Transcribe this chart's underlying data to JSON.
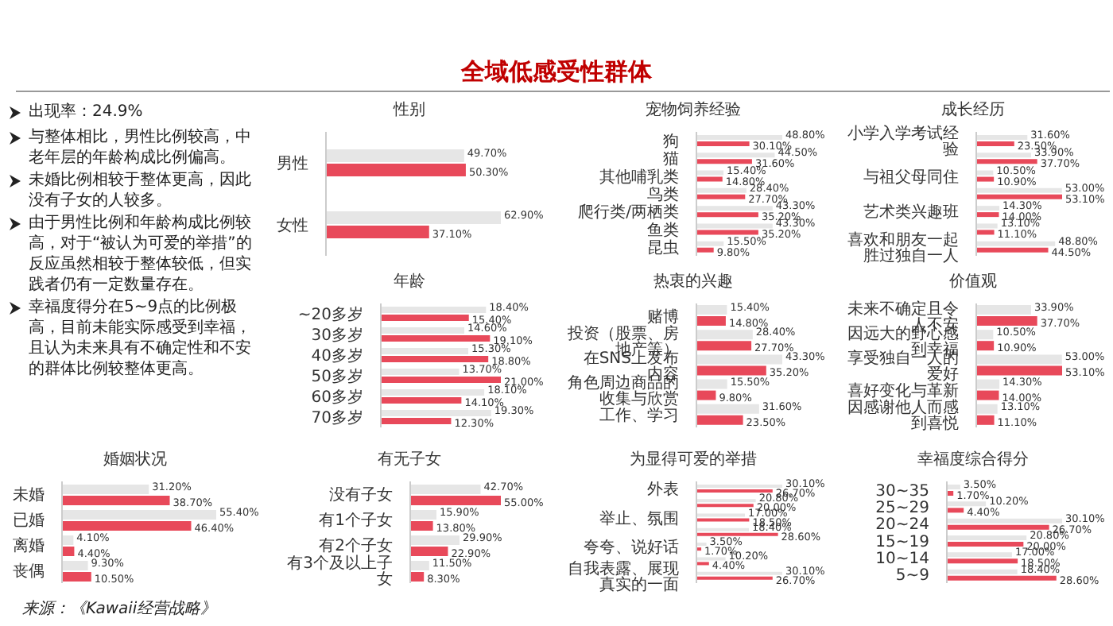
{
  "chart_data": [
    {
      "type": "other",
      "title": "全域低感受性群体",
      "annotations": [
        "出现率：24.9%",
        "与整体相比，男性比例较高，中老年层的年龄构成比例偏高。",
        "未婚比例相较于整体更高，因此没有子女的人较多。",
        "由于男性比例和年龄构成比例较高，对于“被认为可爱的举措”的反应虽然相较于整体较低，但实践者仍有一定数量存在。",
        "幸福度得分在5~9点的比例极高，目前未能实际感受到幸福，且认为未来具有不确定性和不安的群体比例较整体更高。",
        "来源：《Kawaii经营战略》"
      ]
    },
    {
      "type": "bar",
      "orientation": "horizontal",
      "title": "性别",
      "tick_labels": "y",
      "categories": [
        "男性",
        "女性"
      ],
      "series": [
        {
          "color": "#e6e6e6",
          "values": [
            49.7,
            62.9
          ],
          "value_labels": [
            "49.70%",
            "62.90%"
          ]
        },
        {
          "color": "#e8495a",
          "values": [
            50.3,
            37.1
          ],
          "value_labels": [
            "50.30%",
            "37.10%"
          ]
        }
      ]
    },
    {
      "type": "bar",
      "orientation": "horizontal",
      "title": "宠物饲养经验",
      "tick_labels": "y",
      "categories": [
        "狗",
        "猫",
        "其他哺乳类",
        "鸟类",
        "爬行类/两栖类",
        "鱼类",
        "昆虫"
      ],
      "series": [
        {
          "color": "#e6e6e6",
          "values": [
            48.8,
            44.5,
            15.4,
            28.4,
            43.3,
            43.3,
            15.5
          ],
          "value_labels": [
            "48.80%",
            "44.50%",
            "15.40%",
            "28.40%",
            "43.30%",
            "43.30%",
            "15.50%"
          ]
        },
        {
          "color": "#e8495a",
          "values": [
            30.1,
            31.6,
            14.8,
            27.7,
            35.2,
            35.2,
            9.8
          ],
          "value_labels": [
            "30.10%",
            "31.60%",
            "14.80%",
            "27.70%",
            "35.20%",
            "35.20%",
            "9.80%"
          ]
        }
      ]
    },
    {
      "type": "bar",
      "orientation": "horizontal",
      "title": "成长经历",
      "tick_labels": "y",
      "categories": [
        "小学入学考试经验",
        null,
        "与祖父母同住",
        null,
        "艺术类兴趣班",
        null,
        "喜欢和朋友一起胜过独自一人"
      ],
      "series": [
        {
          "color": "#e6e6e6",
          "values": [
            31.6,
            33.9,
            10.5,
            53.0,
            14.3,
            13.1,
            48.8
          ],
          "value_labels": [
            "31.60%",
            "33.90%",
            "10.50%",
            "53.00%",
            "14.30%",
            "13.10%",
            "48.80%"
          ]
        },
        {
          "color": "#e8495a",
          "values": [
            23.5,
            37.7,
            10.9,
            53.1,
            14.0,
            11.1,
            44.5
          ],
          "value_labels": [
            "23.50%",
            "37.70%",
            "10.90%",
            "53.10%",
            "14.00%",
            "11.10%",
            "44.50%"
          ]
        }
      ]
    },
    {
      "type": "bar",
      "orientation": "horizontal",
      "title": "年龄",
      "tick_labels": "y",
      "categories": [
        "~20多岁",
        "30多岁",
        "40多岁",
        "50多岁",
        "60多岁",
        "70多岁"
      ],
      "series": [
        {
          "color": "#e6e6e6",
          "values": [
            18.4,
            14.6,
            15.3,
            13.7,
            18.1,
            19.3
          ],
          "value_labels": [
            "18.40%",
            "14.60%",
            "15.30%",
            "13.70%",
            "18.10%",
            "19.30%"
          ]
        },
        {
          "color": "#e8495a",
          "values": [
            15.4,
            19.1,
            18.8,
            21.0,
            14.1,
            12.3
          ],
          "value_labels": [
            "15.40%",
            "19.10%",
            "18.80%",
            "21.00%",
            "14.10%",
            "12.30%"
          ]
        }
      ]
    },
    {
      "type": "bar",
      "orientation": "horizontal",
      "title": "热衷的兴趣",
      "tick_labels": "y",
      "categories": [
        "赌博",
        "投资（股票、房地产等）",
        "在SNS上发布内容",
        "角色周边商品的收集与欣赏",
        "工作、学习"
      ],
      "series": [
        {
          "color": "#e6e6e6",
          "values": [
            15.4,
            28.4,
            43.3,
            15.5,
            31.6
          ],
          "value_labels": [
            "15.40%",
            "28.40%",
            "43.30%",
            "15.50%",
            "31.60%"
          ]
        },
        {
          "color": "#e8495a",
          "values": [
            14.8,
            27.7,
            35.2,
            9.8,
            23.5
          ],
          "value_labels": [
            "14.80%",
            "27.70%",
            "35.20%",
            "9.80%",
            "23.50%"
          ]
        }
      ]
    },
    {
      "type": "bar",
      "orientation": "horizontal",
      "title": "价值观",
      "tick_labels": "y",
      "categories": [
        "未来不确定且令人不安",
        "因远大的野心感到幸福",
        "享受独自一人的爱好",
        "喜好变化与革新",
        "因感谢他人而感到喜悦"
      ],
      "series": [
        {
          "color": "#e6e6e6",
          "values": [
            33.9,
            10.5,
            53.0,
            14.3,
            13.1
          ],
          "value_labels": [
            "33.90%",
            "10.50%",
            "53.00%",
            "14.30%",
            "13.10%"
          ]
        },
        {
          "color": "#e8495a",
          "values": [
            37.7,
            10.9,
            53.1,
            14.0,
            11.1
          ],
          "value_labels": [
            "37.70%",
            "10.90%",
            "53.10%",
            "14.00%",
            "11.10%"
          ]
        }
      ]
    },
    {
      "type": "bar",
      "orientation": "horizontal",
      "title": "婚姻状况",
      "tick_labels": "y",
      "categories": [
        "未婚",
        "已婚",
        "离婚",
        "丧偶"
      ],
      "series": [
        {
          "color": "#e6e6e6",
          "values": [
            31.2,
            55.4,
            4.1,
            9.3
          ],
          "value_labels": [
            "31.20%",
            "55.40%",
            "4.10%",
            "9.30%"
          ]
        },
        {
          "color": "#e8495a",
          "values": [
            38.7,
            46.4,
            4.4,
            10.5
          ],
          "value_labels": [
            "38.70%",
            "46.40%",
            "4.40%",
            "10.50%"
          ]
        }
      ]
    },
    {
      "type": "bar",
      "orientation": "horizontal",
      "title": "有无子女",
      "tick_labels": "y",
      "categories": [
        "没有子女",
        "有1个子女",
        "有2个子女",
        "有3个及以上子女"
      ],
      "series": [
        {
          "color": "#e6e6e6",
          "values": [
            42.7,
            15.9,
            29.9,
            11.5
          ],
          "value_labels": [
            "42.70%",
            "15.90%",
            "29.90%",
            "11.50%"
          ]
        },
        {
          "color": "#e8495a",
          "values": [
            55.0,
            13.8,
            22.9,
            8.3
          ],
          "value_labels": [
            "55.00%",
            "13.80%",
            "22.90%",
            "8.30%"
          ]
        }
      ]
    },
    {
      "type": "bar",
      "orientation": "horizontal",
      "title": "为显得可爱的举措",
      "tick_labels": "y",
      "categories": [
        "外表",
        null,
        "举止、氛围",
        null,
        "夸夸、说好话",
        null,
        "自我表露、展现真实的一面"
      ],
      "series": [
        {
          "color": "#e6e6e6",
          "values": [
            30.1,
            20.8,
            17.0,
            18.4,
            3.5,
            10.2,
            30.1
          ],
          "value_labels": [
            "30.10%",
            "20.80%",
            "17.00%",
            "18.40%",
            "3.50%",
            "10.20%",
            "30.10%"
          ]
        },
        {
          "color": "#e8495a",
          "values": [
            26.7,
            20.0,
            18.5,
            28.6,
            1.7,
            4.4,
            26.7
          ],
          "value_labels": [
            "26.70%",
            "20.00%",
            "18.50%",
            "28.60%",
            "1.70%",
            "4.40%",
            "26.70%"
          ]
        }
      ]
    },
    {
      "type": "bar",
      "orientation": "horizontal",
      "title": "幸福度综合得分",
      "tick_labels": "y",
      "categories": [
        "30~35",
        "25~29",
        "20~24",
        "15~19",
        "10~14",
        "5~9"
      ],
      "series": [
        {
          "color": "#e6e6e6",
          "values": [
            3.5,
            10.2,
            30.1,
            20.8,
            17.0,
            18.4
          ],
          "value_labels": [
            "3.50%",
            "10.20%",
            "30.10%",
            "20.80%",
            "17.00%",
            "18.40%"
          ]
        },
        {
          "color": "#e8495a",
          "values": [
            1.7,
            4.4,
            26.7,
            20.0,
            18.5,
            28.6
          ],
          "value_labels": [
            "1.70%",
            "4.40%",
            "26.70%",
            "20.00%",
            "18.50%",
            "28.60%"
          ]
        }
      ]
    }
  ]
}
